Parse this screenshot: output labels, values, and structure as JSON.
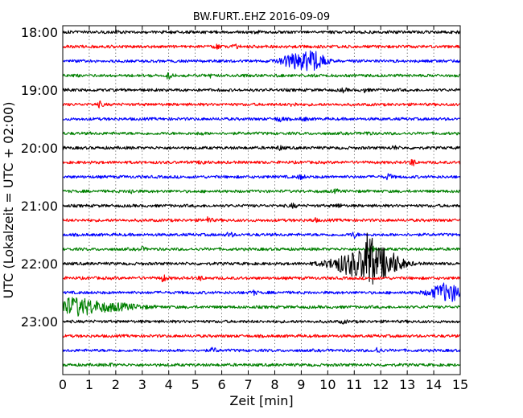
{
  "chart_data": {
    "type": "line",
    "title": "BW.FURT..EHZ 2016-09-09",
    "xlabel": "Zeit  [min]",
    "ylabel": "UTC (Lokalzeit = UTC + 02:00)",
    "xlim": [
      0,
      15
    ],
    "x_ticks": [
      "0",
      "1",
      "2",
      "3",
      "4",
      "5",
      "6",
      "7",
      "8",
      "9",
      "10",
      "11",
      "12",
      "13",
      "14",
      "15"
    ],
    "y_ticks": [
      "18:00",
      "19:00",
      "20:00",
      "21:00",
      "22:00",
      "23:00"
    ],
    "grid": "vertical dotted",
    "trace_interval_min": 15,
    "color_cycle": [
      "#000000",
      "#ff0000",
      "#0000ff",
      "#008000"
    ],
    "traces": [
      {
        "start": "18:00",
        "events": [
          {
            "t": 2.0,
            "amp": 0.25
          },
          {
            "t": 7.3,
            "amp": 0.2
          }
        ]
      },
      {
        "start": "18:15",
        "events": [
          {
            "t": 5.8,
            "amp": 0.4
          },
          {
            "t": 6.5,
            "amp": 0.3
          }
        ]
      },
      {
        "start": "18:30",
        "events": [
          {
            "t": 8.8,
            "amp": 1.6,
            "dur": 0.5
          },
          {
            "t": 9.5,
            "amp": 1.7,
            "dur": 0.4
          }
        ]
      },
      {
        "start": "18:45",
        "events": [
          {
            "t": 4.0,
            "amp": 0.5
          },
          {
            "t": 5.6,
            "amp": 0.3
          }
        ]
      },
      {
        "start": "19:00",
        "events": [
          {
            "t": 10.6,
            "amp": 0.3
          },
          {
            "t": 11.4,
            "amp": 0.3
          }
        ]
      },
      {
        "start": "19:15",
        "events": [
          {
            "t": 1.4,
            "amp": 0.45
          },
          {
            "t": 8.7,
            "amp": 0.35
          }
        ]
      },
      {
        "start": "19:30",
        "events": [
          {
            "t": 8.2,
            "amp": 0.5
          },
          {
            "t": 9.1,
            "amp": 0.3
          }
        ]
      },
      {
        "start": "19:45",
        "events": [
          {
            "t": 5.2,
            "amp": 0.2
          },
          {
            "t": 11.5,
            "amp": 0.25
          }
        ]
      },
      {
        "start": "20:00",
        "events": [
          {
            "t": 8.2,
            "amp": 0.35
          },
          {
            "t": 12.5,
            "amp": 0.3
          }
        ]
      },
      {
        "start": "20:15",
        "events": [
          {
            "t": 5.3,
            "amp": 0.4
          },
          {
            "t": 13.2,
            "amp": 0.55
          }
        ]
      },
      {
        "start": "20:30",
        "events": [
          {
            "t": 9.0,
            "amp": 0.4
          },
          {
            "t": 12.3,
            "amp": 0.5
          }
        ]
      },
      {
        "start": "20:45",
        "events": [
          {
            "t": 2.6,
            "amp": 0.35
          },
          {
            "t": 10.3,
            "amp": 0.25
          }
        ]
      },
      {
        "start": "21:00",
        "events": [
          {
            "t": 8.7,
            "amp": 0.35
          },
          {
            "t": 10.4,
            "amp": 0.3
          }
        ]
      },
      {
        "start": "21:15",
        "events": [
          {
            "t": 5.5,
            "amp": 0.55
          },
          {
            "t": 9.5,
            "amp": 0.3
          }
        ]
      },
      {
        "start": "21:30",
        "events": [
          {
            "t": 6.3,
            "amp": 0.45
          },
          {
            "t": 11.0,
            "amp": 0.5
          }
        ]
      },
      {
        "start": "21:45",
        "events": [
          {
            "t": 3.0,
            "amp": 0.3
          },
          {
            "t": 11.7,
            "amp": 0.45
          }
        ]
      },
      {
        "start": "22:00",
        "events": [
          {
            "t": 11.2,
            "amp": 2.6,
            "dur": 1.0
          },
          {
            "t": 12.2,
            "amp": 2.0,
            "dur": 0.6
          },
          {
            "t": 11.55,
            "amp": 4.6,
            "dur": 0.15
          }
        ]
      },
      {
        "start": "22:15",
        "events": [
          {
            "t": 3.8,
            "amp": 0.6
          },
          {
            "t": 5.2,
            "amp": 0.3
          }
        ]
      },
      {
        "start": "22:30",
        "events": [
          {
            "t": 7.2,
            "amp": 0.35
          },
          {
            "t": 14.5,
            "amp": 1.8,
            "dur": 0.6
          }
        ]
      },
      {
        "start": "22:45",
        "events": [
          {
            "t": 0.4,
            "amp": 1.8,
            "dur": 0.9
          },
          {
            "t": 2.0,
            "amp": 0.6,
            "dur": 1.0
          }
        ]
      },
      {
        "start": "23:00",
        "events": [
          {
            "t": 10.6,
            "amp": 0.25
          }
        ]
      },
      {
        "start": "23:15",
        "events": []
      },
      {
        "start": "23:30",
        "events": [
          {
            "t": 5.7,
            "amp": 0.45
          },
          {
            "t": 11.9,
            "amp": 0.55
          }
        ]
      },
      {
        "start": "23:45",
        "events": [
          {
            "t": 1.8,
            "amp": 0.2
          }
        ]
      }
    ]
  }
}
